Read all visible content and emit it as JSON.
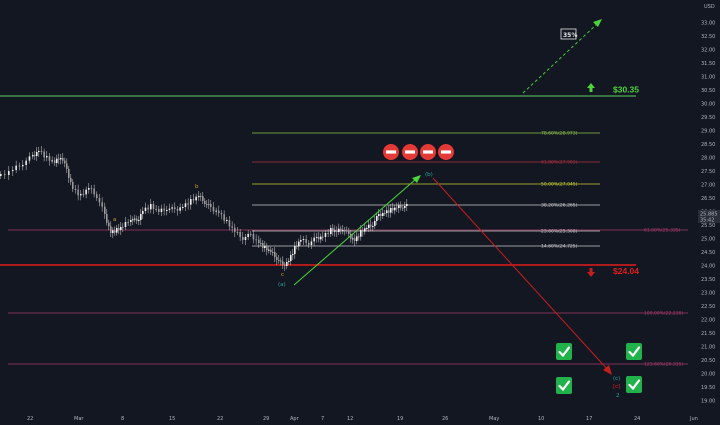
{
  "colors": {
    "background": "#131722",
    "candle": "#e6e6e6",
    "green_line": "#4caf50",
    "red_line": "#e31b1b",
    "orange_label": "#c9a227",
    "teal_label": "#26a69a",
    "arrow_green": "#4cd43a",
    "arrow_red": "#c41e1e",
    "check_green": "#21b24b",
    "stop_red": "#e53935",
    "fib_red": "#b0303e",
    "fib_yellow": "#c8c832",
    "fib_green": "#8bc34a",
    "fib_white": "#c8c8c8",
    "fib_pink": "#a83a6a",
    "gridline": "#1e2230"
  },
  "price_axis": {
    "labels": [
      "33.00",
      "32.50",
      "32.00",
      "31.50",
      "31.00",
      "30.50",
      "30.00",
      "29.50",
      "29.00",
      "28.50",
      "28.00",
      "27.50",
      "27.00",
      "26.50",
      "26.00",
      "25.50",
      "25.00",
      "24.50",
      "24.00",
      "23.50",
      "23.00",
      "22.50",
      "22.00",
      "21.50",
      "21.00",
      "20.50",
      "20.00",
      "19.50",
      "19.00"
    ],
    "top_label": "USD",
    "current_price": "25.885",
    "countdown": "35:42"
  },
  "time_axis": {
    "labels": [
      "22",
      "Mar",
      "8",
      "15",
      "22",
      "29",
      "Apr",
      "7",
      "12",
      "19",
      "26",
      "May",
      "10",
      "17",
      "24",
      "Jun"
    ]
  },
  "levels": {
    "target_up": "$30.35",
    "target_down": "$24.04"
  },
  "fib_labels": {
    "f786": "78.60%(28.973)",
    "f618": "61.80%(27.903)",
    "f50": "50.00%(27.045)",
    "f382": "38.20%(26.265)",
    "f236": "23.60%(25.308)",
    "f146": "14.60%(24.725)",
    "r618": "61.80%(25.335)",
    "r100": "100.00%(22.230)",
    "r1236": "123.60%(20.315)"
  },
  "badge": "35%",
  "wave_labels": {
    "a": "a",
    "b": "b",
    "c": "c",
    "wa": "(a)",
    "wb": "(b)",
    "wc": "(c)",
    "wc2": "[c]",
    "w2": "2"
  },
  "icons": {
    "stop_signs": [
      "stop-sign-icon",
      "stop-sign-icon",
      "stop-sign-icon",
      "stop-sign-icon"
    ],
    "checks": [
      "check-icon",
      "check-icon",
      "check-icon",
      "check-icon"
    ],
    "arrows": [
      "arrow-up-icon",
      "arrow-down-icon"
    ]
  }
}
